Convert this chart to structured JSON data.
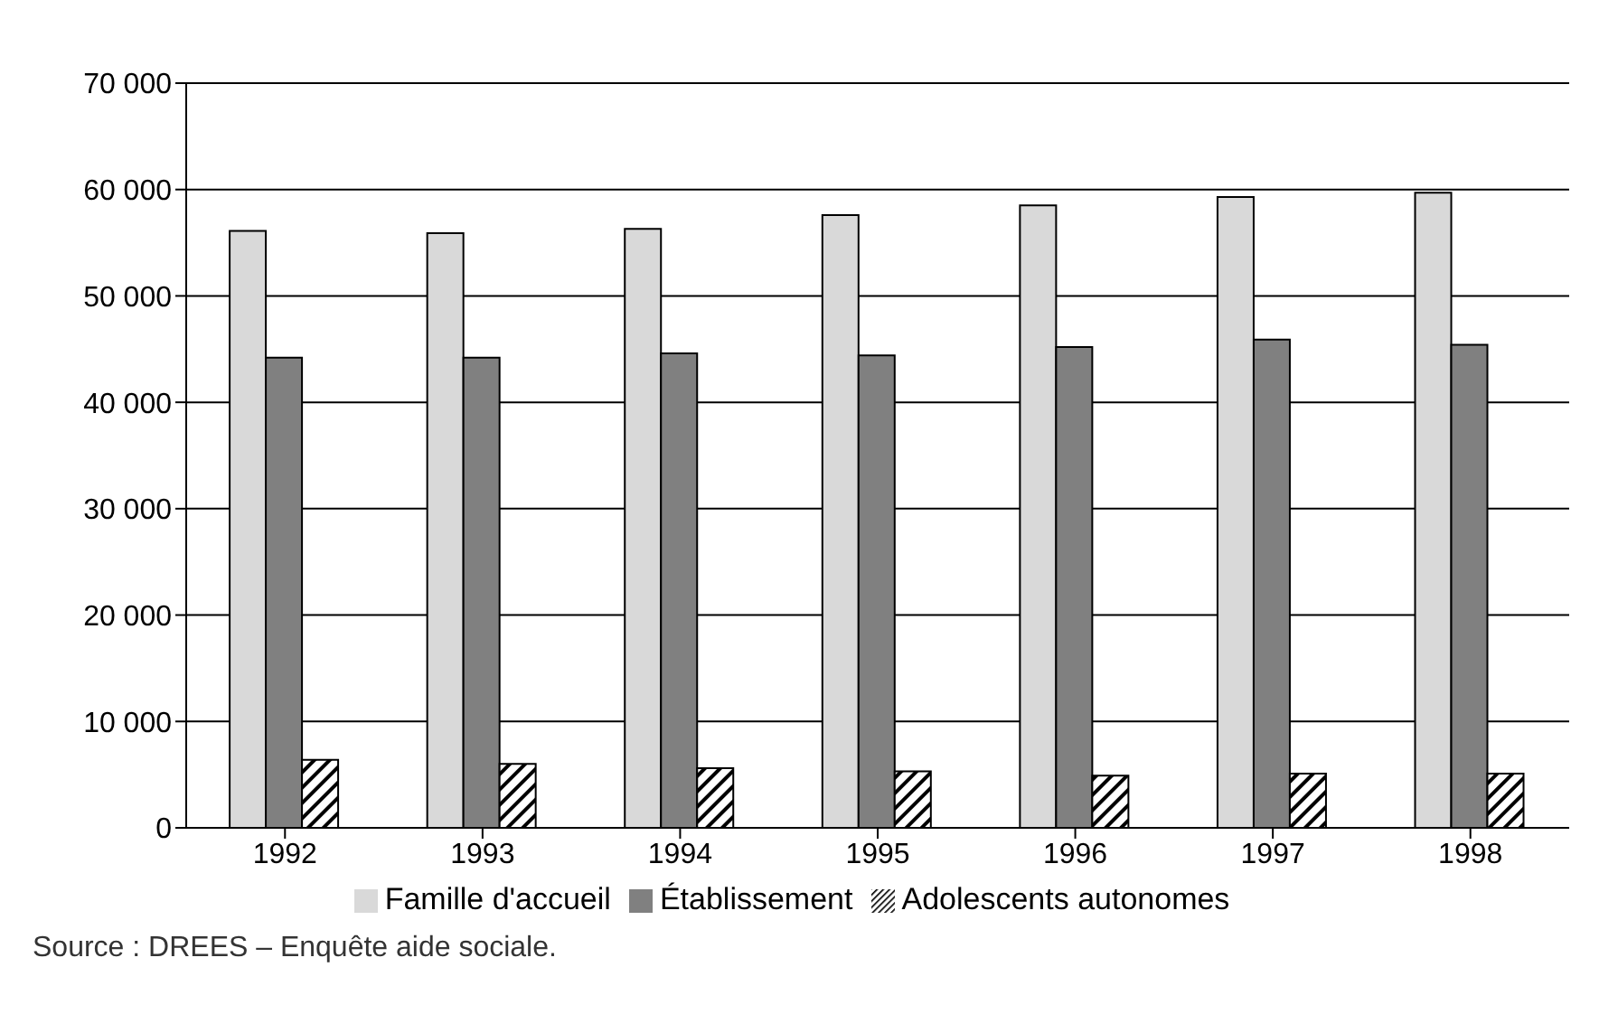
{
  "chart_data": {
    "type": "bar",
    "categories": [
      "1992",
      "1993",
      "1994",
      "1995",
      "1996",
      "1997",
      "1998"
    ],
    "series": [
      {
        "name": "Famille d'accueil",
        "color": "#d9d9d9",
        "values": [
          56100,
          55900,
          56300,
          57600,
          58500,
          59300,
          59700
        ]
      },
      {
        "name": "Établissement",
        "color": "#808080",
        "values": [
          44200,
          44200,
          44600,
          44400,
          45200,
          45900,
          45400
        ]
      },
      {
        "name": "Adolescents autonomes",
        "color": "#000000",
        "values": [
          6400,
          6000,
          5600,
          5300,
          4900,
          5100,
          5100
        ]
      }
    ],
    "ylim": [
      0,
      70000
    ],
    "yticks": [
      {
        "value": 0,
        "label": "0"
      },
      {
        "value": 10000,
        "label": "10 000"
      },
      {
        "value": 20000,
        "label": "20 000"
      },
      {
        "value": 30000,
        "label": "30 000"
      },
      {
        "value": 40000,
        "label": "40 000"
      },
      {
        "value": 50000,
        "label": "50 000"
      },
      {
        "value": 60000,
        "label": "60 000"
      },
      {
        "value": 70000,
        "label": "70 000"
      }
    ],
    "grid": "y",
    "legend": "bottom",
    "annotations": [
      "Source : DREES – Enquête aide sociale."
    ]
  }
}
